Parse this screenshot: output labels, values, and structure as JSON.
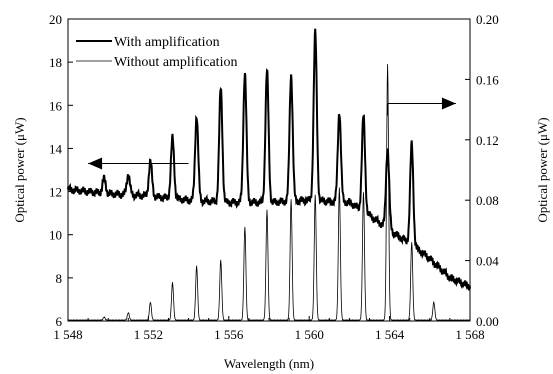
{
  "chart_data": {
    "type": "line",
    "xlabel": "Wavelength (nm)",
    "ylabel_left": "Optical power (μW)",
    "ylabel_right": "Optical power (μW)",
    "xlim": [
      1548,
      1568
    ],
    "ylim_left": [
      6,
      20
    ],
    "ylim_right": [
      0.0,
      0.2
    ],
    "xticks": [
      "1 548",
      "1 552",
      "1 556",
      "1 560",
      "1 564",
      "1 568"
    ],
    "xtick_values": [
      1548,
      1552,
      1556,
      1560,
      1564,
      1568
    ],
    "yticks_left": [
      "6",
      "8",
      "10",
      "12",
      "14",
      "16",
      "18",
      "20"
    ],
    "ytick_values_left": [
      6,
      8,
      10,
      12,
      14,
      16,
      18,
      20
    ],
    "yticks_right": [
      "0.00",
      "0.04",
      "0.08",
      "0.12",
      "0.16",
      "0.20"
    ],
    "ytick_values_right": [
      0.0,
      0.04,
      0.08,
      0.12,
      0.16,
      0.2
    ],
    "grid": false,
    "legend_position": "top-left",
    "series": [
      {
        "name": "With amplification",
        "axis": "left",
        "color": "#000000",
        "style": "bold",
        "baseline_points": [
          [
            1548.0,
            12.1
          ],
          [
            1550.0,
            11.9
          ],
          [
            1552.0,
            11.8
          ],
          [
            1554.0,
            11.6
          ],
          [
            1556.0,
            11.5
          ],
          [
            1558.0,
            11.5
          ],
          [
            1560.0,
            11.6
          ],
          [
            1562.0,
            11.5
          ],
          [
            1563.0,
            10.9
          ],
          [
            1564.0,
            10.2
          ],
          [
            1565.0,
            9.6
          ],
          [
            1566.0,
            8.9
          ],
          [
            1567.0,
            8.0
          ],
          [
            1568.0,
            7.6
          ]
        ],
        "peaks": [
          {
            "x": 1549.8,
            "y": 12.6
          },
          {
            "x": 1551.0,
            "y": 12.8
          },
          {
            "x": 1552.1,
            "y": 13.4
          },
          {
            "x": 1553.2,
            "y": 14.5
          },
          {
            "x": 1554.4,
            "y": 15.5
          },
          {
            "x": 1555.6,
            "y": 16.8
          },
          {
            "x": 1556.8,
            "y": 17.5
          },
          {
            "x": 1557.9,
            "y": 17.6
          },
          {
            "x": 1559.1,
            "y": 17.4
          },
          {
            "x": 1560.3,
            "y": 19.4
          },
          {
            "x": 1561.5,
            "y": 15.7
          },
          {
            "x": 1562.7,
            "y": 15.5
          },
          {
            "x": 1563.9,
            "y": 14.0
          },
          {
            "x": 1565.1,
            "y": 14.2
          },
          {
            "x": 1566.2,
            "y": 8.7
          }
        ]
      },
      {
        "name": "Without amplification",
        "axis": "right",
        "color": "#000000",
        "style": "thin",
        "baseline": 0.0,
        "peaks": [
          {
            "x": 1549.8,
            "y": 0.002
          },
          {
            "x": 1551.0,
            "y": 0.005
          },
          {
            "x": 1552.1,
            "y": 0.012
          },
          {
            "x": 1553.2,
            "y": 0.025
          },
          {
            "x": 1554.4,
            "y": 0.036
          },
          {
            "x": 1555.6,
            "y": 0.04
          },
          {
            "x": 1556.8,
            "y": 0.062
          },
          {
            "x": 1557.9,
            "y": 0.073
          },
          {
            "x": 1559.1,
            "y": 0.08
          },
          {
            "x": 1560.3,
            "y": 0.083
          },
          {
            "x": 1561.5,
            "y": 0.088
          },
          {
            "x": 1562.7,
            "y": 0.085
          },
          {
            "x": 1563.9,
            "y": 0.17
          },
          {
            "x": 1565.1,
            "y": 0.052
          },
          {
            "x": 1566.2,
            "y": 0.012
          }
        ]
      }
    ],
    "annotations": [
      {
        "kind": "arrow",
        "points_to": "left-axis",
        "from": {
          "x": 1554.0,
          "y": 13.3
        },
        "to": {
          "x": 1549.0,
          "y": 13.3
        }
      },
      {
        "kind": "arrow",
        "points_to": "right-axis",
        "from": {
          "x": 1564.0,
          "y": 0.144
        },
        "to": {
          "x": 1567.3,
          "y": 0.144
        }
      }
    ]
  }
}
